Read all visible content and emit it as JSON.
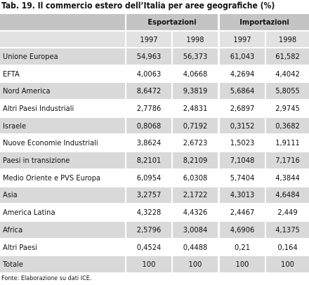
{
  "title": "Tab. 19. Il commercio estero dell’Italia per aree geografiche (%)",
  "table": {
    "groups": [
      {
        "label": "Esportazioni",
        "years": [
          "1997",
          "1998"
        ]
      },
      {
        "label": "Importazioni",
        "years": [
          "1997",
          "1998"
        ]
      }
    ],
    "rows": [
      {
        "label": "Unione Europea",
        "values": [
          "54,963",
          "56,373",
          "61,043",
          "61,582"
        ]
      },
      {
        "label": "EFTA",
        "values": [
          "4,0063",
          "4,0668",
          "4,2694",
          "4,4042"
        ]
      },
      {
        "label": "Nord America",
        "values": [
          "8,6472",
          "9,3819",
          "5,6864",
          "5,8055"
        ]
      },
      {
        "label": "Altri Paesi Industriali",
        "values": [
          "2,7786",
          "2,4831",
          "2,6897",
          "2,9745"
        ]
      },
      {
        "label": "Israele",
        "values": [
          "0,8068",
          "0,7192",
          "0,3152",
          "0,3682"
        ]
      },
      {
        "label": "Nuove Economie Industriali",
        "values": [
          "3,8624",
          "2,6723",
          "1,5023",
          "1,9111"
        ]
      },
      {
        "label": "Paesi in transizione",
        "values": [
          "8,2101",
          "8,2109",
          "7,1048",
          "7,1716"
        ]
      },
      {
        "label": "Medio Oriente e PVS Europa",
        "values": [
          "6,0954",
          "6,0308",
          "5,7404",
          "4,3844"
        ]
      },
      {
        "label": "Asia",
        "values": [
          "3,2757",
          "2,1722",
          "4,3013",
          "4,6484"
        ]
      },
      {
        "label": "America Latina",
        "values": [
          "4,3228",
          "4,4326",
          "2,4467",
          "2,449"
        ]
      },
      {
        "label": "Africa",
        "values": [
          "2,5796",
          "3,0084",
          "4,6906",
          "4,1375"
        ]
      },
      {
        "label": "Altri Paesi",
        "values": [
          "0,4524",
          "0,4488",
          "0,21",
          "0,164"
        ]
      },
      {
        "label": "Totale",
        "values": [
          "100",
          "100",
          "100",
          "100"
        ]
      }
    ]
  },
  "source": "Fonte: Elaborazione su dati ICE."
}
